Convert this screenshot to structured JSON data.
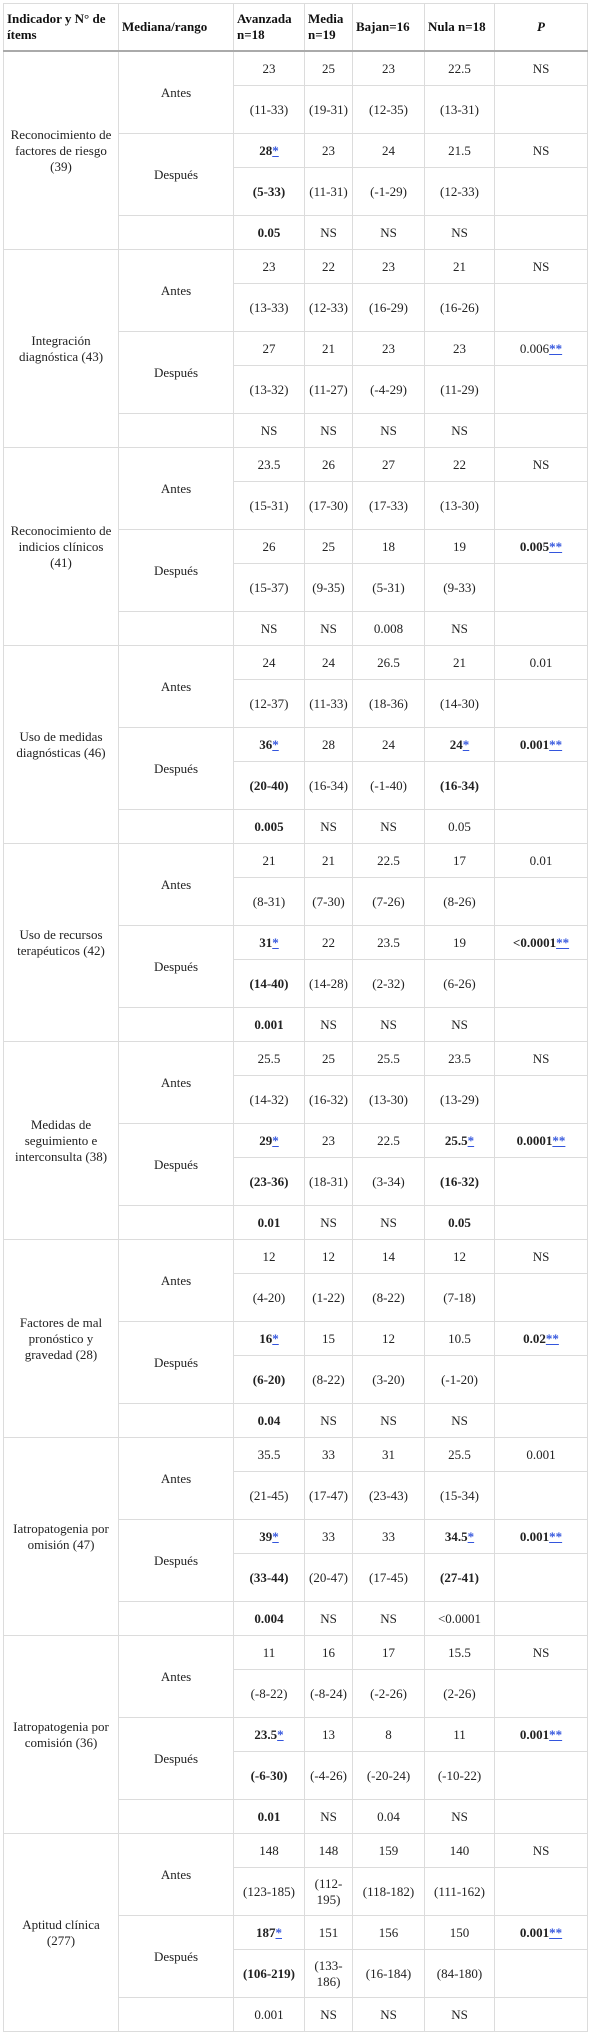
{
  "header": {
    "columns": [
      "Indicador y N° de ítems",
      "Mediana/rango",
      "Avanzada n=18",
      "Media n=19",
      "Bajan=16",
      "Nula n=18",
      "P"
    ]
  },
  "groups": [
    {
      "label": "Reconocimiento de factores de riesgo (39)",
      "antes": {
        "label": "Antes",
        "median": [
          "23",
          "25",
          "23",
          "22.5",
          "NS"
        ],
        "range": [
          "(11-33)",
          "(19-31)",
          "(12-35)",
          "(13-31)"
        ]
      },
      "despues": {
        "label": "Después",
        "median": [
          {
            "text": "28",
            "link": "*",
            "bold": true
          },
          "23",
          "24",
          "21.5",
          "NS"
        ],
        "range": [
          {
            "text": "(5-33)",
            "bold": true
          },
          "(11-31)",
          "(-1-29)",
          "(12-33)"
        ]
      },
      "comparison": [
        {
          "text": "0.05",
          "bold": true
        },
        "NS",
        "NS",
        "NS"
      ]
    },
    {
      "label": "Integración diagnóstica (43)",
      "antes": {
        "label": "Antes",
        "median": [
          "23",
          "22",
          "23",
          "21",
          "NS"
        ],
        "range": [
          "(13-33)",
          "(12-33)",
          "(16-29)",
          "(16-26)"
        ]
      },
      "despues": {
        "label": "Después",
        "median": [
          "27",
          "21",
          "23",
          "23",
          {
            "text": "0.006",
            "link": "**"
          }
        ],
        "range": [
          "(13-32)",
          "(11-27)",
          "(-4-29)",
          "(11-29)"
        ]
      },
      "comparison": [
        "NS",
        "NS",
        "NS",
        "NS"
      ]
    },
    {
      "label": "Reconocimiento de indicios clínicos (41)",
      "antes": {
        "label": "Antes",
        "median": [
          "23.5",
          "26",
          "27",
          "22",
          "NS"
        ],
        "range": [
          "(15-31)",
          "(17-30)",
          "(17-33)",
          "(13-30)"
        ]
      },
      "despues": {
        "label": "Después",
        "median": [
          "26",
          "25",
          "18",
          "19",
          {
            "text": "0.005",
            "link": "**",
            "bold": true
          }
        ],
        "range": [
          "(15-37)",
          "(9-35)",
          "(5-31)",
          "(9-33)"
        ]
      },
      "comparison": [
        "NS",
        "NS",
        "0.008",
        "NS"
      ]
    },
    {
      "label": "Uso de medidas diagnósticas (46)",
      "antes": {
        "label": "Antes",
        "median": [
          "24",
          "24",
          "26.5",
          "21",
          "0.01"
        ],
        "range": [
          "(12-37)",
          "(11-33)",
          "(18-36)",
          "(14-30)"
        ]
      },
      "despues": {
        "label": "Después",
        "median": [
          {
            "text": "36",
            "link": "*",
            "bold": true
          },
          "28",
          "24",
          {
            "text": "24",
            "link": "*",
            "bold": true
          },
          {
            "text": "0.001",
            "link": "**",
            "bold": true
          }
        ],
        "range": [
          {
            "text": "(20-40)",
            "bold": true
          },
          "(16-34)",
          "(-1-40)",
          {
            "text": "(16-34)",
            "bold": true
          }
        ]
      },
      "comparison": [
        {
          "text": "0.005",
          "bold": true
        },
        "NS",
        "NS",
        "0.05"
      ]
    },
    {
      "label": "Uso de recursos terapéuticos (42)",
      "antes": {
        "label": "Antes",
        "median": [
          "21",
          "21",
          "22.5",
          "17",
          "0.01"
        ],
        "range": [
          "(8-31)",
          "(7-30)",
          "(7-26)",
          "(8-26)"
        ]
      },
      "despues": {
        "label": "Después",
        "median": [
          {
            "text": "31",
            "link": "*",
            "bold": true
          },
          "22",
          "23.5",
          "19",
          {
            "text": "<0.0001",
            "link": "**",
            "bold": true
          }
        ],
        "range": [
          {
            "text": "(14-40)",
            "bold": true
          },
          "(14-28)",
          "(2-32)",
          "(6-26)"
        ]
      },
      "comparison": [
        {
          "text": "0.001",
          "bold": true
        },
        "NS",
        "NS",
        "NS"
      ]
    },
    {
      "label": "Medidas de seguimiento e interconsulta (38)",
      "antes": {
        "label": "Antes",
        "median": [
          "25.5",
          "25",
          "25.5",
          "23.5",
          "NS"
        ],
        "range": [
          "(14-32)",
          "(16-32)",
          "(13-30)",
          "(13-29)"
        ]
      },
      "despues": {
        "label": "Después",
        "median": [
          {
            "text": "29",
            "link": "*",
            "bold": true
          },
          "23",
          "22.5",
          {
            "text": "25.5",
            "link": "*",
            "bold": true
          },
          {
            "text": "0.0001",
            "link": "**",
            "bold": true
          }
        ],
        "range": [
          {
            "text": "(23-36)",
            "bold": true
          },
          "(18-31)",
          "(3-34)",
          {
            "text": "(16-32)",
            "bold": true
          }
        ]
      },
      "comparison": [
        {
          "text": "0.01",
          "bold": true
        },
        "NS",
        "NS",
        {
          "text": "0.05",
          "bold": true
        }
      ]
    },
    {
      "label": "Factores de mal pronóstico y gravedad (28)",
      "antes": {
        "label": "Antes",
        "median": [
          "12",
          "12",
          "14",
          "12",
          "NS"
        ],
        "range": [
          "(4-20)",
          "(1-22)",
          "(8-22)",
          "(7-18)"
        ]
      },
      "despues": {
        "label": "Después",
        "median": [
          {
            "text": "16",
            "link": "*",
            "bold": true
          },
          "15",
          "12",
          "10.5",
          {
            "text": "0.02",
            "link": "**",
            "bold": true
          }
        ],
        "range": [
          {
            "text": "(6-20)",
            "bold": true
          },
          "(8-22)",
          "(3-20)",
          "(-1-20)"
        ]
      },
      "comparison": [
        {
          "text": "0.04",
          "bold": true
        },
        "NS",
        "NS",
        "NS"
      ]
    },
    {
      "label": "Iatropatogenia por omisión (47)",
      "antes": {
        "label": "Antes",
        "median": [
          "35.5",
          "33",
          "31",
          "25.5",
          "0.001"
        ],
        "range": [
          "(21-45)",
          "(17-47)",
          "(23-43)",
          "(15-34)"
        ]
      },
      "despues": {
        "label": "Después",
        "median": [
          {
            "text": "39",
            "link": "*",
            "bold": true
          },
          "33",
          "33",
          {
            "text": "34.5",
            "link": "*",
            "bold": true
          },
          {
            "text": "0.001",
            "link": "**",
            "bold": true
          }
        ],
        "range": [
          {
            "text": "(33-44)",
            "bold": true
          },
          "(20-47)",
          "(17-45)",
          {
            "text": "(27-41)",
            "bold": true
          }
        ]
      },
      "comparison": [
        {
          "text": "0.004",
          "bold": true
        },
        "NS",
        "NS",
        "<0.0001"
      ]
    },
    {
      "label": "Iatropatogenia por comisión (36)",
      "antes": {
        "label": "Antes",
        "median": [
          "11",
          "16",
          "17",
          "15.5",
          "NS"
        ],
        "range": [
          "(-8-22)",
          "(-8-24)",
          "(-2-26)",
          "(2-26)"
        ]
      },
      "despues": {
        "label": "Después",
        "median": [
          {
            "text": "23.5",
            "link": "*",
            "bold": true
          },
          "13",
          "8",
          "11",
          {
            "text": "0.001",
            "link": "**",
            "bold": true
          }
        ],
        "range": [
          {
            "text": "(-6-30)",
            "bold": true
          },
          "(-4-26)",
          "(-20-24)",
          "(-10-22)"
        ]
      },
      "comparison": [
        {
          "text": "0.01",
          "bold": true
        },
        "NS",
        "0.04",
        "NS"
      ]
    },
    {
      "label": "Aptitud clínica (277)",
      "antes": {
        "label": "Antes",
        "median": [
          "148",
          "148",
          "159",
          "140",
          "NS"
        ],
        "range": [
          "(123-185)",
          "(112-195)",
          "(118-182)",
          "(111-162)"
        ]
      },
      "despues": {
        "label": "Después",
        "median": [
          {
            "text": "187",
            "link": "*",
            "bold": true
          },
          "151",
          "156",
          "150",
          {
            "text": "0.001",
            "link": "**",
            "bold": true
          }
        ],
        "range": [
          {
            "text": "(106-219)",
            "bold": true
          },
          "(133-186)",
          "(16-184)",
          "(84-180)"
        ]
      },
      "comparison": [
        "0.001",
        "NS",
        "NS",
        "NS"
      ]
    }
  ]
}
